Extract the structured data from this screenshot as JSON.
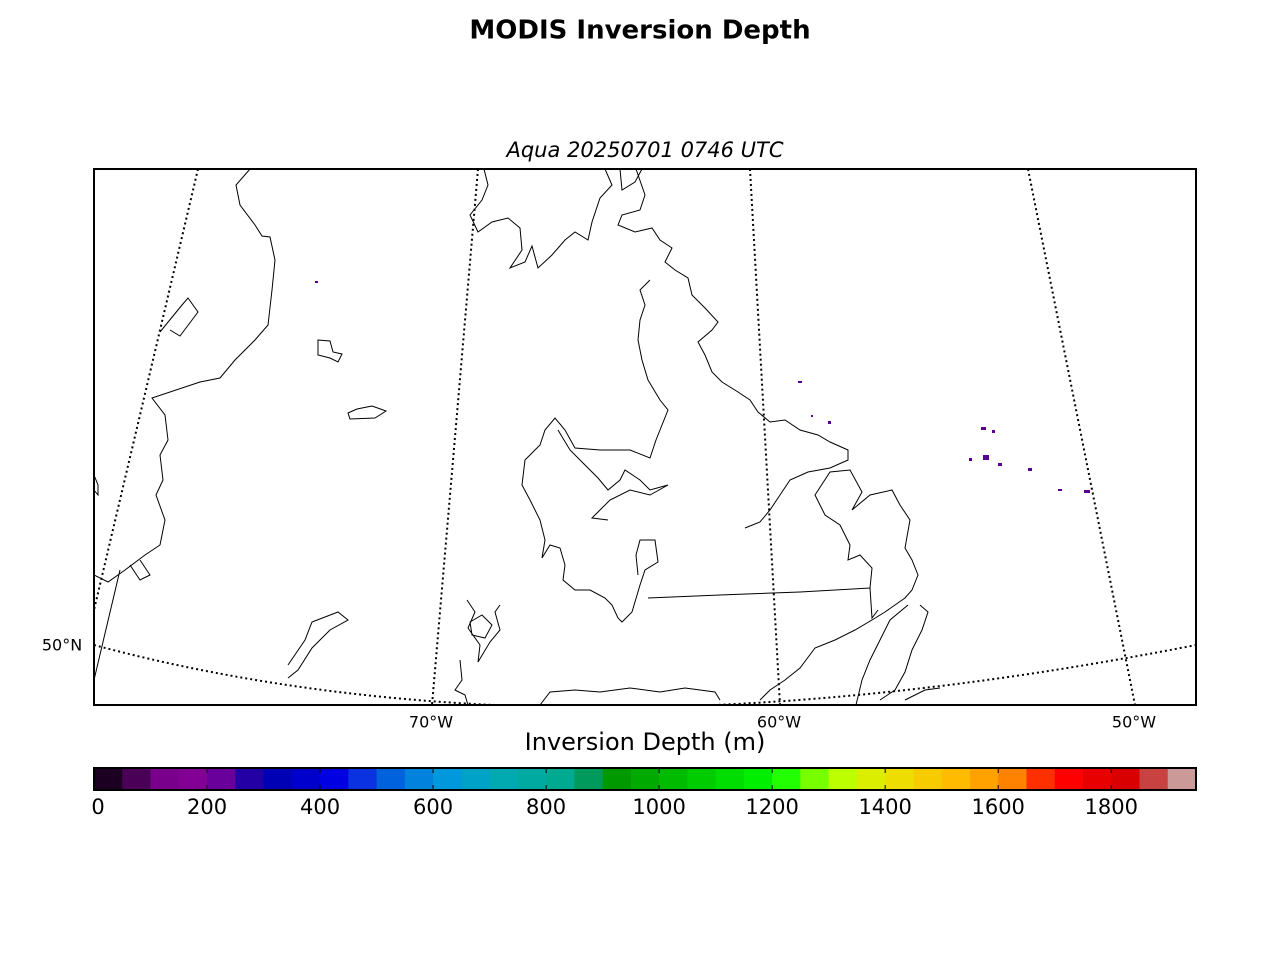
{
  "chart_data": {
    "type": "map",
    "title": "MODIS Inversion Depth",
    "subtitle": "Aqua 20250701 0746 UTC",
    "lon_labels": [
      "70°W",
      "60°W",
      "50°W"
    ],
    "lat_labels": [
      "50°N"
    ],
    "colorbar": {
      "label": "Inversion Depth (m)",
      "lim": [
        0,
        1950
      ],
      "ticks": [
        0,
        200,
        400,
        600,
        800,
        1000,
        1200,
        1400,
        1600,
        1800
      ],
      "colors": [
        "#1c0022",
        "#4a0056",
        "#78008a",
        "#820094",
        "#6a009c",
        "#2200a4",
        "#0000b4",
        "#0000cc",
        "#0000e2",
        "#0a32e0",
        "#0062dd",
        "#0082dd",
        "#0098dd",
        "#00a2c8",
        "#00aab0",
        "#00aaa0",
        "#00aa90",
        "#009a5c",
        "#009900",
        "#00aa00",
        "#00bb00",
        "#00cc00",
        "#00dd00",
        "#00ee00",
        "#22ff00",
        "#77ff00",
        "#bbff00",
        "#dcee00",
        "#eedd00",
        "#f6cc00",
        "#ffbb00",
        "#ffa200",
        "#ff8200",
        "#ff3000",
        "#ff0000",
        "#e80000",
        "#d80000",
        "#c84242",
        "#cc9999"
      ]
    }
  }
}
